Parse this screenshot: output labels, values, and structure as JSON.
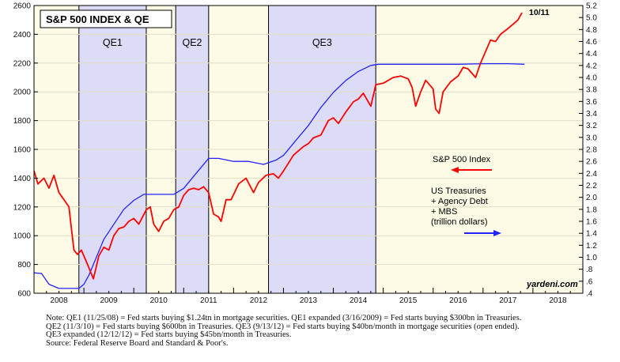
{
  "chart_data": {
    "type": "line",
    "title": "S&P 500 INDEX & QE",
    "x_tick_labels": [
      "2008",
      "2009",
      "2010",
      "2011",
      "2012",
      "2013",
      "2014",
      "2015",
      "2016",
      "2017",
      "2018"
    ],
    "xlim": [
      2008.0,
      2019.0
    ],
    "y_left": {
      "ylim": [
        600,
        2600
      ],
      "ticks": [
        600,
        800,
        1000,
        1200,
        1400,
        1600,
        1800,
        2000,
        2200,
        2400,
        2600
      ],
      "tick_labels": [
        "600",
        "800",
        "1000",
        "1200",
        "1400",
        "1600",
        "1800",
        "2000",
        "2200",
        "2400",
        "2600"
      ]
    },
    "y_right": {
      "ylim": [
        0.4,
        5.2
      ],
      "ticks": [
        0.4,
        0.6,
        0.8,
        1.0,
        1.2,
        1.4,
        1.6,
        1.8,
        2.0,
        2.2,
        2.4,
        2.6,
        2.8,
        3.0,
        3.2,
        3.4,
        3.6,
        3.8,
        4.0,
        4.2,
        4.4,
        4.6,
        4.8,
        5.0,
        5.2
      ],
      "tick_labels": [
        ".4",
        ".6",
        ".8",
        "1.0",
        "1.2",
        "1.4",
        "1.6",
        "1.8",
        "2.0",
        "2.2",
        "2.4",
        "2.6",
        "2.8",
        "3.0",
        "3.2",
        "3.4",
        "3.6",
        "3.8",
        "4.0",
        "4.2",
        "4.4",
        "4.6",
        "4.8",
        "5.0",
        "5.2"
      ]
    },
    "shaded_periods": [
      {
        "label": "QE1",
        "start": 2008.9,
        "end": 2010.25,
        "color": "#dcdcf7"
      },
      {
        "label": "QE2",
        "start": 2010.84,
        "end": 2011.5,
        "color": "#dcdcf7"
      },
      {
        "label": "QE3",
        "start": 2012.7,
        "end": 2014.85,
        "color": "#dcdcf7"
      }
    ],
    "background_color": "#fdfbe5",
    "series": [
      {
        "name": "S&P 500 Index",
        "axis": "left",
        "color": "#ff0000",
        "points": [
          [
            2008.0,
            1450
          ],
          [
            2008.08,
            1360
          ],
          [
            2008.2,
            1400
          ],
          [
            2008.3,
            1330
          ],
          [
            2008.4,
            1420
          ],
          [
            2008.5,
            1300
          ],
          [
            2008.6,
            1250
          ],
          [
            2008.7,
            1200
          ],
          [
            2008.75,
            1050
          ],
          [
            2008.8,
            900
          ],
          [
            2008.87,
            870
          ],
          [
            2008.95,
            900
          ],
          [
            2009.05,
            820
          ],
          [
            2009.12,
            760
          ],
          [
            2009.19,
            700
          ],
          [
            2009.3,
            860
          ],
          [
            2009.4,
            920
          ],
          [
            2009.5,
            900
          ],
          [
            2009.6,
            1000
          ],
          [
            2009.7,
            1050
          ],
          [
            2009.8,
            1060
          ],
          [
            2009.9,
            1100
          ],
          [
            2010.0,
            1120
          ],
          [
            2010.1,
            1080
          ],
          [
            2010.25,
            1180
          ],
          [
            2010.33,
            1200
          ],
          [
            2010.4,
            1080
          ],
          [
            2010.5,
            1030
          ],
          [
            2010.6,
            1100
          ],
          [
            2010.7,
            1120
          ],
          [
            2010.8,
            1180
          ],
          [
            2010.9,
            1200
          ],
          [
            2011.0,
            1280
          ],
          [
            2011.1,
            1320
          ],
          [
            2011.2,
            1330
          ],
          [
            2011.3,
            1320
          ],
          [
            2011.4,
            1340
          ],
          [
            2011.5,
            1300
          ],
          [
            2011.6,
            1150
          ],
          [
            2011.7,
            1130
          ],
          [
            2011.75,
            1100
          ],
          [
            2011.85,
            1250
          ],
          [
            2011.95,
            1250
          ],
          [
            2012.1,
            1360
          ],
          [
            2012.25,
            1400
          ],
          [
            2012.4,
            1300
          ],
          [
            2012.5,
            1370
          ],
          [
            2012.65,
            1420
          ],
          [
            2012.8,
            1430
          ],
          [
            2012.9,
            1400
          ],
          [
            2013.0,
            1450
          ],
          [
            2013.2,
            1560
          ],
          [
            2013.4,
            1620
          ],
          [
            2013.5,
            1640
          ],
          [
            2013.6,
            1680
          ],
          [
            2013.75,
            1700
          ],
          [
            2013.9,
            1800
          ],
          [
            2014.0,
            1820
          ],
          [
            2014.1,
            1780
          ],
          [
            2014.25,
            1860
          ],
          [
            2014.4,
            1930
          ],
          [
            2014.5,
            1950
          ],
          [
            2014.6,
            1990
          ],
          [
            2014.75,
            1900
          ],
          [
            2014.85,
            2050
          ],
          [
            2015.0,
            2060
          ],
          [
            2015.2,
            2100
          ],
          [
            2015.35,
            2110
          ],
          [
            2015.5,
            2090
          ],
          [
            2015.58,
            2030
          ],
          [
            2015.65,
            1900
          ],
          [
            2015.75,
            2000
          ],
          [
            2015.85,
            2080
          ],
          [
            2016.0,
            2020
          ],
          [
            2016.05,
            1880
          ],
          [
            2016.12,
            1850
          ],
          [
            2016.2,
            2000
          ],
          [
            2016.35,
            2070
          ],
          [
            2016.5,
            2110
          ],
          [
            2016.6,
            2170
          ],
          [
            2016.7,
            2160
          ],
          [
            2016.85,
            2100
          ],
          [
            2016.95,
            2200
          ],
          [
            2017.05,
            2280
          ],
          [
            2017.15,
            2360
          ],
          [
            2017.25,
            2350
          ],
          [
            2017.35,
            2400
          ],
          [
            2017.5,
            2440
          ],
          [
            2017.6,
            2470
          ],
          [
            2017.7,
            2500
          ],
          [
            2017.78,
            2550
          ]
        ]
      },
      {
        "name": "US Treasuries + Agency Debt + MBS (trillion dollars)",
        "axis": "right",
        "color": "#2222ff",
        "points": [
          [
            2008.0,
            0.74
          ],
          [
            2008.15,
            0.73
          ],
          [
            2008.3,
            0.55
          ],
          [
            2008.5,
            0.48
          ],
          [
            2008.9,
            0.48
          ],
          [
            2009.0,
            0.55
          ],
          [
            2009.1,
            0.7
          ],
          [
            2009.25,
            1.0
          ],
          [
            2009.4,
            1.3
          ],
          [
            2009.6,
            1.55
          ],
          [
            2009.8,
            1.8
          ],
          [
            2010.0,
            1.95
          ],
          [
            2010.2,
            2.05
          ],
          [
            2010.5,
            2.05
          ],
          [
            2010.8,
            2.05
          ],
          [
            2011.0,
            2.15
          ],
          [
            2011.25,
            2.4
          ],
          [
            2011.5,
            2.65
          ],
          [
            2011.7,
            2.65
          ],
          [
            2012.0,
            2.6
          ],
          [
            2012.3,
            2.6
          ],
          [
            2012.6,
            2.55
          ],
          [
            2012.85,
            2.62
          ],
          [
            2013.0,
            2.7
          ],
          [
            2013.25,
            2.95
          ],
          [
            2013.5,
            3.2
          ],
          [
            2013.75,
            3.5
          ],
          [
            2014.0,
            3.75
          ],
          [
            2014.25,
            3.95
          ],
          [
            2014.5,
            4.1
          ],
          [
            2014.75,
            4.2
          ],
          [
            2014.9,
            4.22
          ],
          [
            2015.2,
            4.22
          ],
          [
            2015.6,
            4.22
          ],
          [
            2016.0,
            4.22
          ],
          [
            2016.5,
            4.22
          ],
          [
            2017.0,
            4.23
          ],
          [
            2017.5,
            4.23
          ],
          [
            2017.83,
            4.22
          ]
        ]
      }
    ],
    "annotations": {
      "end_label": "10/11",
      "sp_legend": "S&P 500 Index",
      "fed_legend": [
        "US Treasuries",
        "+ Agency Debt",
        "+ MBS",
        "(trillion dollars)"
      ],
      "watermark": "yardeni.com"
    }
  },
  "notes": [
    "Note: QE1 (11/25/08) = Fed starts buying $1.24tn in mortgage securities. QE1 expanded (3/16/2009) = Fed starts buying $300bn in Treasuries.",
    "QE2 (11/3/10) = Fed starts buying $600bn in Treasuries. QE3 (9/13/12) = Fed starts buying $40bn/month in mortgage securities (open ended).",
    "QE3 expanded (12/12/12) = Fed starts buying $45bn/month in Treasuries.",
    "Source: Federal Reserve Board and Standard & Poor's."
  ]
}
